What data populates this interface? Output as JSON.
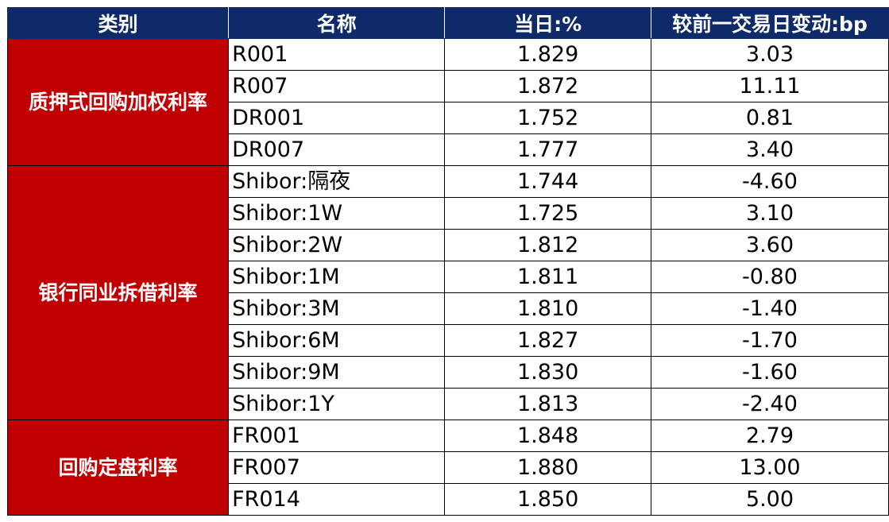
{
  "headers": {
    "category": "类别",
    "name": "名称",
    "today": "当日:%",
    "change": "较前一交易日变动:bp"
  },
  "groups": [
    {
      "category": "质押式回购加权利率",
      "rows": [
        {
          "name": "R001",
          "today": "1.829",
          "change": "3.03"
        },
        {
          "name": "R007",
          "today": "1.872",
          "change": "11.11"
        },
        {
          "name": "DR001",
          "today": "1.752",
          "change": "0.81"
        },
        {
          "name": "DR007",
          "today": "1.777",
          "change": "3.40"
        }
      ]
    },
    {
      "category": "银行同业拆借利率",
      "rows": [
        {
          "name": "Shibor:隔夜",
          "today": "1.744",
          "change": "-4.60"
        },
        {
          "name": "Shibor:1W",
          "today": "1.725",
          "change": "3.10"
        },
        {
          "name": "Shibor:2W",
          "today": "1.812",
          "change": "3.60"
        },
        {
          "name": "Shibor:1M",
          "today": "1.811",
          "change": "-0.80"
        },
        {
          "name": "Shibor:3M",
          "today": "1.810",
          "change": "-1.40"
        },
        {
          "name": "Shibor:6M",
          "today": "1.827",
          "change": "-1.70"
        },
        {
          "name": "Shibor:9M",
          "today": "1.830",
          "change": "-1.60"
        },
        {
          "name": "Shibor:1Y",
          "today": "1.813",
          "change": "-2.40"
        }
      ]
    },
    {
      "category": "回购定盘利率",
      "rows": [
        {
          "name": "FR001",
          "today": "1.848",
          "change": "2.79"
        },
        {
          "name": "FR007",
          "today": "1.880",
          "change": "13.00"
        },
        {
          "name": "FR014",
          "today": "1.850",
          "change": "5.00"
        }
      ]
    }
  ],
  "colors": {
    "header_bg": "#0f2a69",
    "category_bg": "#c00000",
    "header_text": "#ffffff"
  }
}
